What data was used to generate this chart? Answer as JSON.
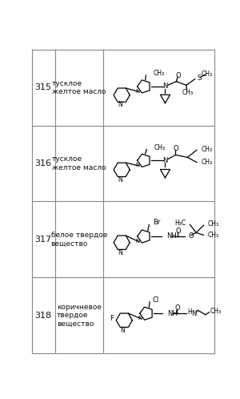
{
  "border_color": "#888888",
  "text_color": "#111111",
  "fig_width": 3.0,
  "fig_height": 4.98,
  "row_numbers": [
    "315",
    "316",
    "317",
    "318"
  ],
  "row_descriptions": [
    "тусклое\nжелтое масло",
    "тусклое\nжелтое масло",
    "белое твердое\nвещество",
    "коричневое\nтвердое\nвещество"
  ]
}
